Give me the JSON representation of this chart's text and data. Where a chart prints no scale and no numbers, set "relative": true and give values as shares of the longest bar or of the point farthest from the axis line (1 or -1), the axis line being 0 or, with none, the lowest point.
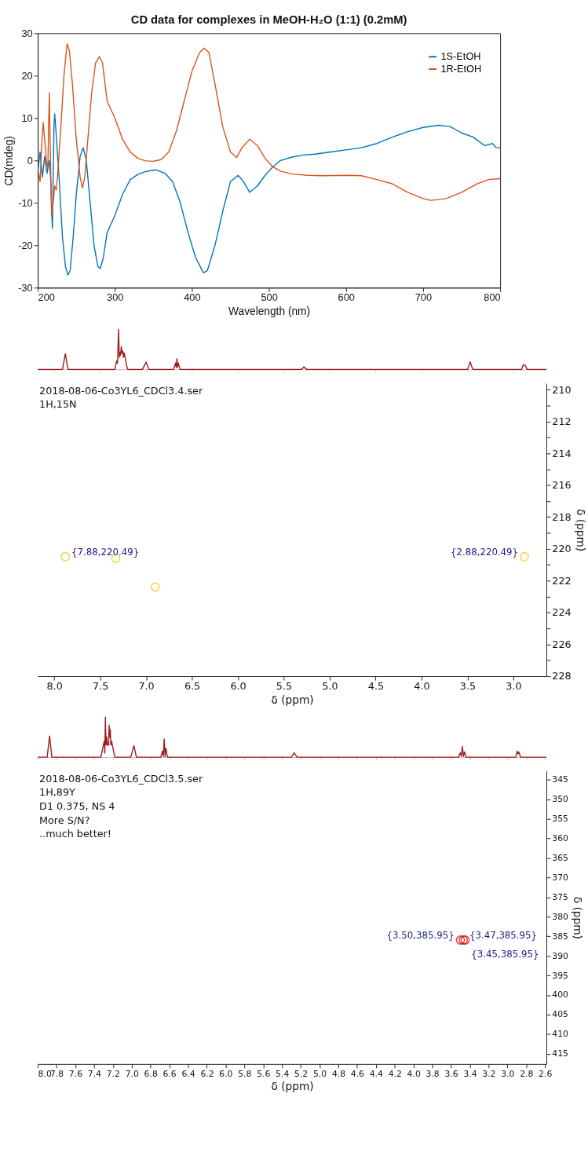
{
  "chart_data": [
    {
      "type": "line",
      "title": "CD data for complexes in MeOH-H₂O (1:1) (0.2mM)",
      "xlabel": "Wavelength (nm)",
      "ylabel": "CD(mdeg)",
      "xlim": [
        200,
        800
      ],
      "ylim": [
        -30,
        30
      ],
      "xticks": [
        200,
        300,
        400,
        500,
        600,
        700,
        800
      ],
      "yticks": [
        -30,
        -20,
        -10,
        0,
        10,
        20,
        30
      ],
      "legend": "top right",
      "series": [
        {
          "name": "1S-EtOH",
          "color": "#0072bd",
          "x": [
            200,
            203,
            206,
            209,
            212,
            215,
            217,
            218,
            219,
            220,
            221,
            222,
            224,
            228,
            232,
            236,
            239,
            242,
            246,
            250,
            255,
            259,
            263,
            268,
            273,
            278,
            281,
            285,
            290,
            295,
            300,
            310,
            320,
            330,
            340,
            353,
            365,
            375,
            385,
            395,
            405,
            415,
            420,
            430,
            440,
            450,
            460,
            467,
            475,
            485,
            495,
            505,
            515,
            530,
            545,
            560,
            580,
            600,
            620,
            640,
            660,
            680,
            700,
            720,
            735,
            750,
            765,
            780,
            790,
            795,
            800
          ],
          "values": [
            -3,
            2,
            -4,
            1,
            -3,
            0,
            -5,
            -12,
            -16,
            -5,
            8,
            11,
            6,
            -5,
            -18,
            -25,
            -27,
            -26,
            -18,
            -8,
            1,
            3,
            0,
            -10,
            -20,
            -25,
            -25.5,
            -23,
            -17,
            -15,
            -13,
            -8,
            -4.5,
            -3.3,
            -2.6,
            -2.2,
            -3,
            -5,
            -10,
            -17,
            -23,
            -26.5,
            -26,
            -20,
            -12,
            -5,
            -3.5,
            -5,
            -7.5,
            -6,
            -3.5,
            -1.5,
            0,
            0.8,
            1.3,
            1.5,
            2,
            2.5,
            3,
            4,
            5.5,
            6.8,
            7.8,
            8.3,
            8,
            6.5,
            5.5,
            3.5,
            4,
            3,
            3
          ]
        },
        {
          "name": "1R-EtOH",
          "color": "#d95319",
          "x": [
            200,
            203,
            205,
            207,
            209,
            211,
            213,
            215,
            216,
            218,
            220,
            222,
            224,
            226,
            230,
            234,
            238,
            241,
            245,
            250,
            255,
            258,
            261,
            265,
            270,
            275,
            280,
            284,
            290,
            300,
            310,
            320,
            330,
            340,
            350,
            360,
            370,
            380,
            390,
            400,
            410,
            416,
            422,
            430,
            440,
            450,
            458,
            465,
            475,
            485,
            495,
            505,
            515,
            530,
            550,
            570,
            600,
            620,
            640,
            660,
            680,
            700,
            710,
            730,
            750,
            770,
            785,
            800
          ],
          "values": [
            -2,
            -5,
            3,
            9,
            5,
            0,
            -2,
            16,
            5,
            -13,
            -10,
            -6,
            -7,
            -3,
            8,
            20,
            27.5,
            26,
            18,
            5,
            -4,
            -6.5,
            -4,
            5,
            16,
            23,
            24.5,
            23,
            14,
            10,
            5,
            2,
            0.5,
            -0.1,
            -0.2,
            0.2,
            2,
            7,
            14,
            21,
            25.5,
            26.5,
            25.5,
            18,
            8,
            2,
            0.7,
            3,
            5,
            3.5,
            0.5,
            -1.5,
            -2.5,
            -3.2,
            -3.5,
            -3.6,
            -3.5,
            -3.6,
            -4.5,
            -5.5,
            -7.5,
            -9,
            -9.4,
            -9,
            -7.5,
            -5.5,
            -4.5,
            -4.3
          ]
        }
      ]
    },
    {
      "type": "line",
      "relative": true,
      "color": "#9b1c1c",
      "tick_labels": false,
      "xlim": [
        8.18,
        2.64
      ],
      "xticks": [
        8,
        7.5,
        7,
        6.5,
        6,
        5.5,
        5,
        4.5,
        4,
        3.5,
        3
      ],
      "x": [
        8.18,
        7.91,
        7.88,
        7.85,
        7.34,
        7.322,
        7.311,
        7.3,
        7.292,
        7.285,
        7.278,
        7.27,
        7.262,
        7.254,
        7.246,
        7.239,
        7.224,
        7.214,
        7.2,
        7.04,
        7.0,
        6.97,
        6.7,
        6.679,
        6.672,
        6.664,
        6.657,
        6.65,
        6.63,
        5.31,
        5.28,
        5.25,
        3.5,
        3.485,
        3.47,
        3.455,
        3.44,
        2.91,
        2.895,
        2.88,
        2.865,
        2.85,
        2.64
      ],
      "values": [
        0,
        0,
        0.39,
        0,
        0,
        0.21,
        0.15,
        1.0,
        0.3,
        0.43,
        0.35,
        0.57,
        0.4,
        0.46,
        0.3,
        0.41,
        0.25,
        0.11,
        0,
        0,
        0.18,
        0,
        0,
        0.16,
        0.05,
        0.27,
        0.05,
        0.16,
        0,
        0,
        0.06,
        0,
        0,
        0.08,
        0.19,
        0.08,
        0,
        0,
        0.1,
        0.11,
        0.08,
        0,
        0
      ]
    },
    {
      "type": "scatter",
      "xlabel": "δ (ppm)",
      "ylabel": "δ (ppm)",
      "xlim": [
        8.18,
        2.64
      ],
      "ylim": [
        228,
        209.6
      ],
      "color": "#f5c400",
      "marker": "circle",
      "xticks": [
        {
          "value": 8,
          "label": "8.0"
        },
        7.5,
        {
          "value": 7,
          "label": "7.0"
        },
        6.5,
        {
          "value": 6,
          "label": "6.0"
        },
        5.5,
        {
          "value": 5,
          "label": "5.0"
        },
        4.5,
        {
          "value": 4,
          "label": "4.0"
        },
        3.5,
        {
          "value": 3,
          "label": "3.0"
        }
      ],
      "yticks": [
        210,
        {
          "value": 211,
          "label": null
        },
        212,
        {
          "value": 213,
          "label": null
        },
        214,
        {
          "value": 215,
          "label": null
        },
        216,
        {
          "value": 217,
          "label": null
        },
        218,
        {
          "value": 219,
          "label": null
        },
        220,
        {
          "value": 221,
          "label": null
        },
        222,
        {
          "value": 223,
          "label": null
        },
        224,
        {
          "value": 225,
          "label": null
        },
        226,
        {
          "value": 227,
          "label": null
        },
        228
      ],
      "x": [
        7.88,
        7.33,
        6.9,
        2.88
      ],
      "values": [
        220.49,
        220.6,
        222.4,
        220.49
      ],
      "annotations": [
        "2018-08-06-Co3YL6_CDCl3.4.ser",
        "1H,15N",
        {
          "text": "{7.88,220.49}",
          "x": 7.88,
          "y": 220.49
        },
        {
          "text": "{2.88,220.49}",
          "x": 2.88,
          "y": 220.49
        }
      ]
    },
    {
      "type": "line",
      "relative": true,
      "color": "#9b1c1c",
      "tick_labels": false,
      "xlim": [
        8.0,
        2.585
      ],
      "xticks": [
        8,
        7.8,
        7.6,
        7.4,
        7.2,
        7,
        6.8,
        6.6,
        6.4,
        6.2,
        6,
        5.8,
        5.6,
        5.4,
        5.2,
        5,
        4.8,
        4.6,
        4.4,
        4.2,
        4,
        3.8,
        3.6,
        3.4,
        3.2,
        3,
        2.8,
        2.6
      ],
      "x": [
        8.0,
        7.9,
        7.874,
        7.85,
        7.33,
        7.318,
        7.303,
        7.292,
        7.286,
        7.28,
        7.273,
        7.266,
        7.258,
        7.251,
        7.245,
        7.24,
        7.234,
        7.228,
        7.221,
        7.214,
        7.199,
        7.18,
        7.01,
        6.976,
        6.95,
        6.69,
        6.672,
        6.663,
        6.654,
        6.645,
        6.635,
        6.62,
        5.3,
        5.27,
        5.24,
        3.52,
        3.501,
        3.49,
        3.479,
        3.468,
        3.456,
        3.44,
        2.91,
        2.896,
        2.887,
        2.878,
        2.86,
        2.585
      ],
      "values": [
        0,
        0,
        0.53,
        0,
        0,
        0.11,
        0.29,
        0.4,
        0.1,
        1.0,
        0.3,
        0.51,
        0.3,
        0.33,
        0.3,
        0.8,
        0.5,
        0.69,
        0.3,
        0.4,
        0.22,
        0,
        0,
        0.29,
        0,
        0,
        0.15,
        0.02,
        0.45,
        0.02,
        0.22,
        0,
        0,
        0.11,
        0,
        0,
        0.11,
        0.02,
        0.27,
        0.02,
        0.13,
        0,
        0,
        0.15,
        0.08,
        0.13,
        0,
        0
      ]
    },
    {
      "type": "scatter",
      "xlabel": "δ (ppm)",
      "ylabel": "δ (ppm)",
      "xlim": [
        8.0,
        2.585
      ],
      "ylim": [
        417.6,
        342.8
      ],
      "color": "#d00000",
      "marker": "circle",
      "xticks": [
        {
          "value": 8,
          "label": "8.0"
        },
        7.8,
        7.6,
        7.4,
        7.2,
        {
          "value": 7,
          "label": "7.0"
        },
        6.8,
        6.6,
        6.4,
        6.2,
        {
          "value": 6,
          "label": "6.0"
        },
        5.8,
        5.6,
        5.4,
        5.2,
        {
          "value": 5,
          "label": "5.0"
        },
        4.8,
        4.6,
        4.4,
        4.2,
        {
          "value": 4,
          "label": "4.0"
        },
        3.8,
        3.6,
        3.4,
        3.2,
        {
          "value": 3,
          "label": "3.0"
        },
        2.8,
        2.6
      ],
      "yticks": [
        345,
        350,
        355,
        360,
        365,
        370,
        375,
        380,
        385,
        390,
        395,
        400,
        405,
        410,
        415
      ],
      "x": [
        3.5,
        3.47,
        3.45
      ],
      "values": [
        385.95,
        385.95,
        385.95
      ],
      "annotations": [
        "2018-08-06-Co3YL6_CDCl3.5.ser",
        "1H,89Y",
        "D1 0.375, NS 4",
        "More S/N?",
        "..much better!",
        {
          "text": "{3.50,385.95}",
          "x": 3.5,
          "y": 385.95
        },
        {
          "text": "{3.47,385.95}",
          "x": 3.47,
          "y": 385.95
        },
        {
          "text": "{3.45,385.95}",
          "x": 3.45,
          "y": 385.95
        }
      ]
    }
  ]
}
